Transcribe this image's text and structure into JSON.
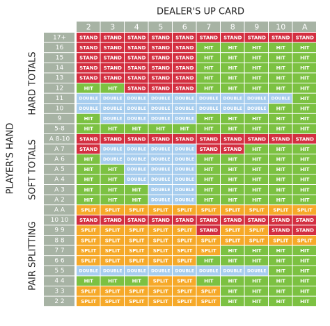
{
  "title": "DEALER'S UP CARD",
  "y_label": "PLAYER'S HAND",
  "columns": [
    "2",
    "3",
    "4",
    "5",
    "6",
    "7",
    "8",
    "9",
    "10",
    "A"
  ],
  "action_colors": {
    "STAND": "#d32f40",
    "HIT": "#7cc142",
    "DOUBLE": "#a7cdee",
    "SPLIT": "#f6a929"
  },
  "sections": [
    {
      "label": "HARD TOTALS",
      "rows": [
        {
          "hand": "17+",
          "cells": [
            "STAND",
            "STAND",
            "STAND",
            "STAND",
            "STAND",
            "STAND",
            "STAND",
            "STAND",
            "STAND",
            "STAND"
          ]
        },
        {
          "hand": "16",
          "cells": [
            "STAND",
            "STAND",
            "STAND",
            "STAND",
            "STAND",
            "HIT",
            "HIT",
            "HIT",
            "HIT",
            "HIT"
          ]
        },
        {
          "hand": "15",
          "cells": [
            "STAND",
            "STAND",
            "STAND",
            "STAND",
            "STAND",
            "HIT",
            "HIT",
            "HIT",
            "HIT",
            "HIT"
          ]
        },
        {
          "hand": "14",
          "cells": [
            "STAND",
            "STAND",
            "STAND",
            "STAND",
            "STAND",
            "HIT",
            "HIT",
            "HIT",
            "HIT",
            "HIT"
          ]
        },
        {
          "hand": "13",
          "cells": [
            "STAND",
            "STAND",
            "STAND",
            "STAND",
            "STAND",
            "HIT",
            "HIT",
            "HIT",
            "HIT",
            "HIT"
          ]
        },
        {
          "hand": "12",
          "cells": [
            "HIT",
            "HIT",
            "STAND",
            "STAND",
            "STAND",
            "HIT",
            "HIT",
            "HIT",
            "HIT",
            "HIT"
          ]
        },
        {
          "hand": "11",
          "cells": [
            "DOUBLE",
            "DOUBLE",
            "DOUBLE",
            "DOUBLE",
            "DOUBLE",
            "DOUBLE",
            "DOUBLE",
            "DOUBLE",
            "DOUBLE",
            "HIT"
          ]
        },
        {
          "hand": "10",
          "cells": [
            "DOUBLE",
            "DOUBLE",
            "DOUBLE",
            "DOUBLE",
            "DOUBLE",
            "DOUBLE",
            "DOUBLE",
            "DOUBLE",
            "HIT",
            "HIT"
          ]
        },
        {
          "hand": "9",
          "cells": [
            "HIT",
            "DOUBLE",
            "DOUBLE",
            "DOUBLE",
            "DOUBLE",
            "HIT",
            "HIT",
            "HIT",
            "HIT",
            "HIT"
          ]
        },
        {
          "hand": "5-8",
          "cells": [
            "HIT",
            "HIT",
            "HIT",
            "HIT",
            "HIT",
            "HIT",
            "HIT",
            "HIT",
            "HIT",
            "HIT"
          ]
        }
      ]
    },
    {
      "label": "SOFT TOTALS",
      "rows": [
        {
          "hand": "A 8-10",
          "cells": [
            "STAND",
            "STAND",
            "STAND",
            "STAND",
            "STAND",
            "STAND",
            "STAND",
            "STAND",
            "STAND",
            "STAND"
          ]
        },
        {
          "hand": "A 7",
          "cells": [
            "STAND",
            "DOUBLE",
            "DOUBLE",
            "DOUBLE",
            "DOUBLE",
            "STAND",
            "STAND",
            "HIT",
            "HIT",
            "HIT"
          ]
        },
        {
          "hand": "A 6",
          "cells": [
            "HIT",
            "DOUBLE",
            "DOUBLE",
            "DOUBLE",
            "DOUBLE",
            "HIT",
            "HIT",
            "HIT",
            "HIT",
            "HIT"
          ]
        },
        {
          "hand": "A 5",
          "cells": [
            "HIT",
            "HIT",
            "DOUBLE",
            "DOUBLE",
            "DOUBLE",
            "HIT",
            "HIT",
            "HIT",
            "HIT",
            "HIT"
          ]
        },
        {
          "hand": "A 4",
          "cells": [
            "HIT",
            "HIT",
            "DOUBLE",
            "DOUBLE",
            "DOUBLE",
            "HIT",
            "HIT",
            "HIT",
            "HIT",
            "HIT"
          ]
        },
        {
          "hand": "A 3",
          "cells": [
            "HIT",
            "HIT",
            "HIT",
            "DOUBLE",
            "DOUBLE",
            "HIT",
            "HIT",
            "HIT",
            "HIT",
            "HIT"
          ]
        },
        {
          "hand": "A 2",
          "cells": [
            "HIT",
            "HIT",
            "HIT",
            "DOUBLE",
            "DOUBLE",
            "HIT",
            "HIT",
            "HIT",
            "HIT",
            "HIT"
          ]
        }
      ]
    },
    {
      "label": "PAIR SPLITTING",
      "rows": [
        {
          "hand": "A A",
          "cells": [
            "SPLIT",
            "SPLIT",
            "SPLIT",
            "SPLIT",
            "SPLIT",
            "SPLIT",
            "SPLIT",
            "SPLIT",
            "SPLIT",
            "SPLIT"
          ]
        },
        {
          "hand": "10 10",
          "cells": [
            "STAND",
            "STAND",
            "STAND",
            "STAND",
            "STAND",
            "STAND",
            "STAND",
            "STAND",
            "STAND",
            "STAND"
          ]
        },
        {
          "hand": "9 9",
          "cells": [
            "SPLIT",
            "SPLIT",
            "SPLIT",
            "SPLIT",
            "SPLIT",
            "STAND",
            "SPLIT",
            "SPLIT",
            "STAND",
            "STAND"
          ]
        },
        {
          "hand": "8 8",
          "cells": [
            "SPLIT",
            "SPLIT",
            "SPLIT",
            "SPLIT",
            "SPLIT",
            "SPLIT",
            "SPLIT",
            "SPLIT",
            "SPLIT",
            "SPLIT"
          ]
        },
        {
          "hand": "7 7",
          "cells": [
            "SPLIT",
            "SPLIT",
            "SPLIT",
            "SPLIT",
            "SPLIT",
            "SPLIT",
            "HIT",
            "HIT",
            "HIT",
            "HIT"
          ]
        },
        {
          "hand": "6 6",
          "cells": [
            "SPLIT",
            "SPLIT",
            "SPLIT",
            "SPLIT",
            "SPLIT",
            "HIT",
            "HIT",
            "HIT",
            "HIT",
            "HIT"
          ]
        },
        {
          "hand": "5 5",
          "cells": [
            "DOUBLE",
            "DOUBLE",
            "DOUBLE",
            "DOUBLE",
            "DOUBLE",
            "DOUBLE",
            "DOUBLE",
            "DOUBLE",
            "HIT",
            "HIT"
          ]
        },
        {
          "hand": "4 4",
          "cells": [
            "HIT",
            "HIT",
            "HIT",
            "SPLIT",
            "SPLIT",
            "HIT",
            "HIT",
            "HIT",
            "HIT",
            "HIT"
          ]
        },
        {
          "hand": "3 3",
          "cells": [
            "SPLIT",
            "SPLIT",
            "SPLIT",
            "SPLIT",
            "SPLIT",
            "SPLIT",
            "HIT",
            "HIT",
            "HIT",
            "HIT"
          ]
        },
        {
          "hand": "2 2",
          "cells": [
            "SPLIT",
            "SPLIT",
            "SPLIT",
            "SPLIT",
            "SPLIT",
            "SPLIT",
            "HIT",
            "HIT",
            "HIT",
            "HIT"
          ]
        }
      ]
    }
  ]
}
